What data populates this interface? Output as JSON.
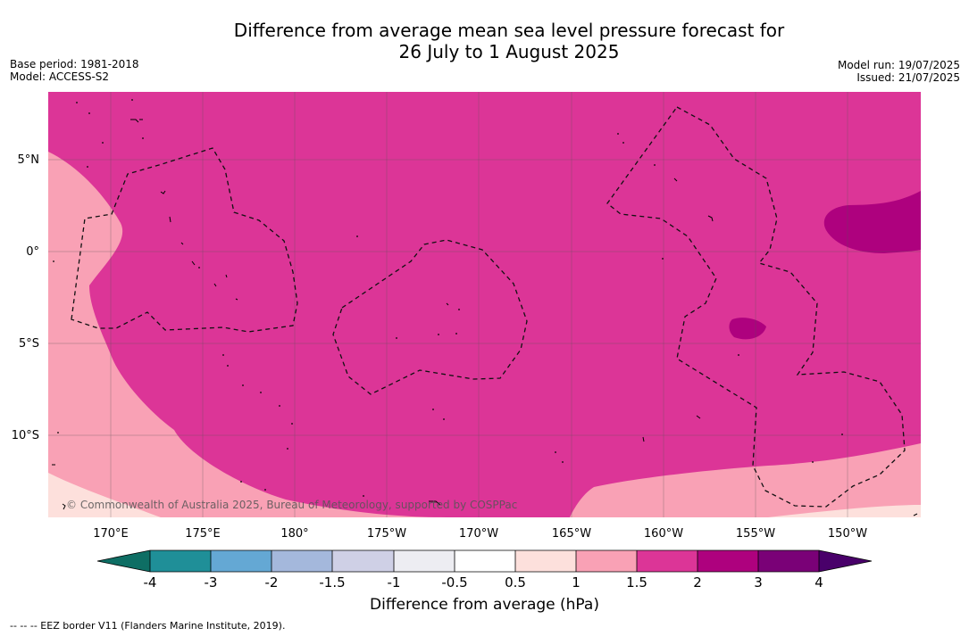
{
  "title_line1": "Difference from average mean sea level pressure forecast for",
  "title_line2": "26 July to 1 August 2025",
  "base_period": "Base period: 1981-2018",
  "model": "Model: ACCESS-S2",
  "model_run": "Model run: 19/07/2025",
  "issued": "Issued: 21/07/2025",
  "copyright": "© Commonwealth of Australia 2025, Bureau of Meteorology, supported by COSPPac",
  "lat_labels": [
    "5°N",
    "0°",
    "5°S",
    "10°S"
  ],
  "lon_labels": [
    "170°E",
    "175°E",
    "180°",
    "175°W",
    "170°W",
    "165°W",
    "160°W",
    "155°W",
    "150°W"
  ],
  "colorbar": {
    "title": "Difference from average (hPa)",
    "tick_labels": [
      "-4",
      "-3",
      "-2",
      "-1.5",
      "-1",
      "-0.5",
      "0.5",
      "1",
      "1.5",
      "2",
      "3",
      "4"
    ],
    "colors": {
      "lt_-4": "#0e6e64",
      "-4_-3": "#1f8f98",
      "-3_-2": "#64a8d4",
      "-2_-1.5": "#a4b8dc",
      "-1.5_-1": "#cfd0e6",
      "-1_-0.5": "#ededf2",
      "-0.5_0.5": "#ffffff",
      "0.5_1": "#fde0dc",
      "1_1.5": "#f9a1b5",
      "1.5_2": "#dc3597",
      "2_3": "#ae017e",
      "3_4": "#7a0177",
      "gt_4": "#49006a"
    }
  },
  "footer": "--  --  -- EEZ border V11 (Flanders Marine Institute, 2019)."
}
